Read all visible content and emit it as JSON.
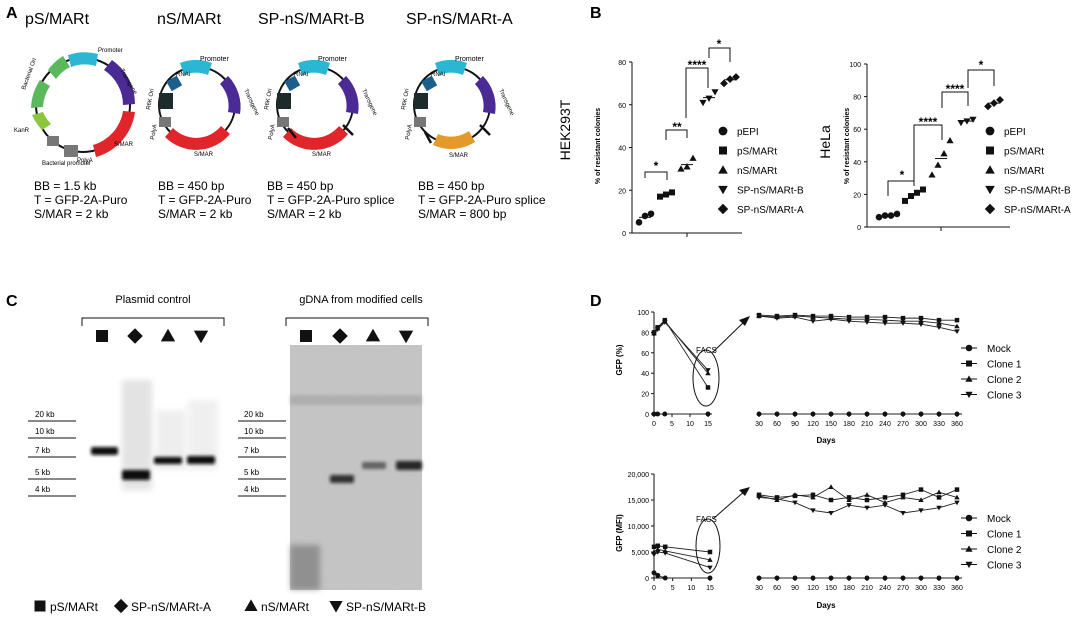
{
  "panel_labels": {
    "A": "A",
    "B": "B",
    "C": "C",
    "D": "D"
  },
  "panelA": {
    "plasmids": [
      {
        "title": "pS/MARt",
        "labels": {
          "bacterial_ori": "Bacterial Ori",
          "promoter": "Promoter",
          "transgene": "Transgene",
          "kanr": "KanR",
          "bacterial_promoter": "Bacterial promoter",
          "polya": "PolyA",
          "smar": "S/MAR"
        },
        "specs": [
          "BB = 1.5 kb",
          "T = GFP-2A-Puro",
          "S/MAR = 2 kb"
        ]
      },
      {
        "title": "nS/MARt",
        "labels": {
          "r6k": "R6K Ori",
          "rnai": "RNAi",
          "promoter": "Promoter",
          "transgene": "Transgene",
          "polya": "PolyA",
          "smar": "S/MAR"
        },
        "specs": [
          "BB = 450 bp",
          "T = GFP-2A-Puro",
          "S/MAR = 2 kb"
        ]
      },
      {
        "title": "SP-nS/MARt-B",
        "labels": {
          "r6k": "R6K Ori",
          "rnai": "RNAi",
          "promoter": "Promoter",
          "transgene": "Transgene",
          "polya": "PolyA",
          "smar": "S/MAR"
        },
        "specs": [
          "BB = 450 bp",
          "T = GFP-2A-Puro splice",
          "S/MAR = 2 kb"
        ]
      },
      {
        "title": "SP-nS/MARt-A",
        "labels": {
          "r6k": "R6K Ori",
          "rnai": "RNAi",
          "promoter": "Promoter",
          "transgene": "Transgene",
          "polya": "PolyA",
          "smar": "S/MAR"
        },
        "specs": [
          "BB = 450 bp",
          "T = GFP-2A-Puro splice",
          "S/MAR = 800 bp"
        ]
      }
    ],
    "colors": {
      "promoter": "#2bb7d4",
      "transgene": "#4b2a96",
      "smar": "#e0262b",
      "smar_short": "#e49a2a",
      "ori": "#5cb85c",
      "kanr": "#8cc63f",
      "r6k": "#1d2b2b",
      "rnai": "#1c5f8c",
      "grey": "#777777"
    }
  },
  "chart_data": [
    {
      "type": "scatter",
      "panel": "B-left",
      "cell_line": "HEK293T",
      "title": "",
      "xlabel": "",
      "ylabel": "% of resistant colonies",
      "ylim": [
        0,
        80
      ],
      "yticks": [
        "0",
        "20",
        "40",
        "60",
        "80"
      ],
      "series": [
        {
          "name": "pEPI",
          "marker": "circle",
          "values": [
            5,
            8,
            9
          ]
        },
        {
          "name": "pS/MARt",
          "marker": "square",
          "values": [
            17,
            18,
            19
          ]
        },
        {
          "name": "nS/MARt",
          "marker": "triangle-up",
          "values": [
            30,
            31,
            35
          ]
        },
        {
          "name": "SP-nS/MARt-B",
          "marker": "triangle-down",
          "values": [
            61,
            63,
            66
          ]
        },
        {
          "name": "SP-nS/MARt-A",
          "marker": "diamond",
          "values": [
            70,
            72,
            73
          ]
        }
      ],
      "significance": [
        "*",
        "**",
        "****",
        "*"
      ]
    },
    {
      "type": "scatter",
      "panel": "B-right",
      "cell_line": "HeLa",
      "title": "",
      "xlabel": "",
      "ylabel": "% of resistant colonies",
      "ylim": [
        0,
        100
      ],
      "yticks": [
        "0",
        "20",
        "40",
        "60",
        "80",
        "100"
      ],
      "series": [
        {
          "name": "pEPI",
          "marker": "circle",
          "values": [
            6,
            7,
            7,
            8
          ]
        },
        {
          "name": "pS/MARt",
          "marker": "square",
          "values": [
            16,
            19,
            21,
            23
          ]
        },
        {
          "name": "nS/MARt",
          "marker": "triangle-up",
          "values": [
            32,
            38,
            45,
            53
          ]
        },
        {
          "name": "SP-nS/MARt-B",
          "marker": "triangle-down",
          "values": [
            64,
            65,
            66
          ]
        },
        {
          "name": "SP-nS/MARt-A",
          "marker": "diamond",
          "values": [
            74,
            76,
            78
          ]
        }
      ],
      "significance": [
        "*",
        "****",
        "****",
        "*"
      ]
    },
    {
      "type": "line",
      "panel": "D-top",
      "title": "",
      "xlabel": "Days",
      "ylabel": "GFP (%)",
      "annotation": "FACS",
      "ylim": [
        0,
        100
      ],
      "yticks": [
        "0",
        "20",
        "40",
        "60",
        "80",
        "100"
      ],
      "x_early_ticks": [
        "0",
        "5",
        "10",
        "15"
      ],
      "x_late_ticks": [
        "30",
        "60",
        "90",
        "120",
        "150",
        "180",
        "210",
        "240",
        "270",
        "300",
        "330",
        "360"
      ],
      "x_early": [
        0,
        1,
        3,
        15
      ],
      "x_late": [
        30,
        60,
        90,
        120,
        150,
        180,
        210,
        240,
        270,
        300,
        330,
        360
      ],
      "series": [
        {
          "name": "Mock",
          "marker": "circle",
          "early": [
            0,
            0,
            0,
            0
          ],
          "late": [
            0,
            0,
            0,
            0,
            0,
            0,
            0,
            0,
            0,
            0,
            0,
            0
          ]
        },
        {
          "name": "Clone 1",
          "marker": "square",
          "early": [
            80,
            85,
            92,
            26
          ],
          "late": [
            97,
            96,
            97,
            96,
            96,
            95,
            95,
            95,
            94,
            94,
            92,
            92
          ]
        },
        {
          "name": "Clone 2",
          "marker": "triangle-up",
          "early": [
            79,
            84,
            91,
            40
          ],
          "late": [
            96,
            95,
            96,
            95,
            94,
            93,
            93,
            92,
            91,
            91,
            89,
            86
          ]
        },
        {
          "name": "Clone 3",
          "marker": "triangle-down",
          "early": [
            78,
            83,
            90,
            43
          ],
          "late": [
            96,
            94,
            95,
            91,
            93,
            91,
            90,
            89,
            89,
            88,
            85,
            81
          ]
        }
      ]
    },
    {
      "type": "line",
      "panel": "D-bottom",
      "title": "",
      "xlabel": "Days",
      "ylabel": "GFP (MFI)",
      "annotation": "FACS",
      "ylim": [
        0,
        20000
      ],
      "yticks": [
        "0",
        "5,000",
        "10,000",
        "15,000",
        "20,000"
      ],
      "x_early_ticks": [
        "0",
        "5",
        "10",
        "15"
      ],
      "x_late_ticks": [
        "30",
        "60",
        "90",
        "120",
        "150",
        "180",
        "210",
        "240",
        "270",
        "300",
        "330",
        "360"
      ],
      "x_early": [
        0,
        1,
        3,
        15
      ],
      "x_late": [
        30,
        60,
        90,
        120,
        150,
        180,
        210,
        240,
        270,
        300,
        330,
        360
      ],
      "series": [
        {
          "name": "Mock",
          "marker": "circle",
          "early": [
            1000,
            500,
            0,
            0
          ],
          "late": [
            0,
            0,
            0,
            0,
            0,
            0,
            0,
            0,
            0,
            0,
            0,
            0
          ]
        },
        {
          "name": "Clone 1",
          "marker": "square",
          "early": [
            6000,
            6200,
            6000,
            5000
          ],
          "late": [
            16000,
            15500,
            15800,
            16000,
            15000,
            15500,
            15000,
            15500,
            16000,
            17000,
            15500,
            17000
          ]
        },
        {
          "name": "Clone 2",
          "marker": "triangle-up",
          "early": [
            5000,
            5500,
            5200,
            3500
          ],
          "late": [
            15800,
            15000,
            16000,
            15500,
            17500,
            15000,
            16000,
            14500,
            15500,
            15000,
            16500,
            15500
          ]
        },
        {
          "name": "Clone 3",
          "marker": "triangle-down",
          "early": [
            4500,
            5000,
            4800,
            2000
          ],
          "late": [
            15500,
            15200,
            14500,
            13000,
            12500,
            14000,
            13500,
            14000,
            12500,
            13000,
            13500,
            14500
          ]
        }
      ]
    }
  ],
  "panelC": {
    "left_header": "Plasmid control",
    "right_header": "gDNA from modified cells",
    "size_markers": [
      "20 kb",
      "10 kb",
      "7 kb",
      "5 kb",
      "4 kb"
    ],
    "lane_markers": [
      "square",
      "diamond",
      "triangle-up",
      "triangle-down"
    ],
    "legend": [
      {
        "marker": "square",
        "label": "pS/MARt"
      },
      {
        "marker": "diamond",
        "label": "SP-nS/MARt-A"
      },
      {
        "marker": "triangle-up",
        "label": "nS/MARt"
      },
      {
        "marker": "triangle-down",
        "label": "SP-nS/MARt-B"
      }
    ]
  }
}
